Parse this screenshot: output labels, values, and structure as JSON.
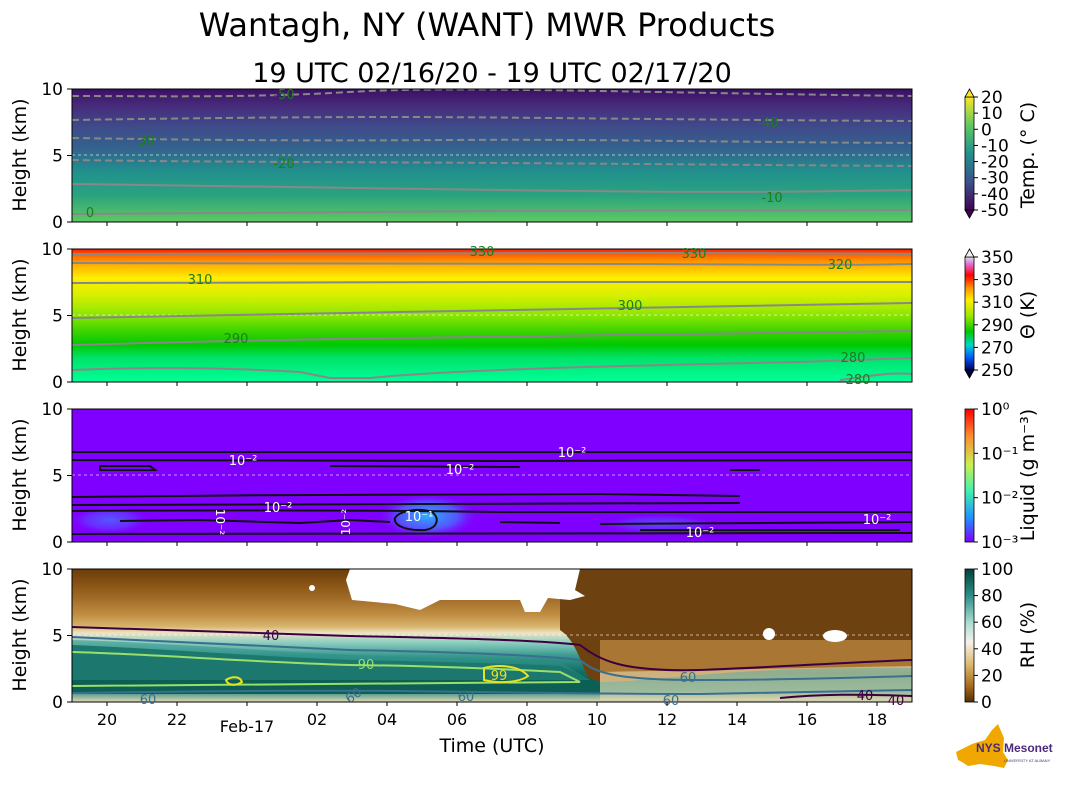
{
  "title": "Wantagh, NY (WANT) MWR Products",
  "subtitle": "19 UTC 02/16/20 - 19 UTC 02/17/20",
  "xlabel": "Time (UTC)",
  "logo_text": "NYS Mesonet",
  "logo_subtext": "UNIVERSITY AT ALBANY",
  "colors": {
    "contour_gray": "#808080",
    "contour_black": "#111111",
    "contour_label_green": "#1a7f1a"
  },
  "chart_data": [
    {
      "type": "heatmap",
      "panel": "temperature",
      "ylabel": "Height (km)",
      "cbar_label": "Temp. (° C)",
      "cbar_ticks": [
        "20",
        "10",
        "0",
        "-10",
        "-20",
        "-30",
        "-40",
        "-50"
      ],
      "ylim": [
        0,
        10
      ],
      "yticks": [
        "0",
        "5",
        "10"
      ],
      "xticks": [
        "20",
        "22",
        "Feb-17",
        "02",
        "04",
        "06",
        "08",
        "10",
        "12",
        "14",
        "16",
        "18"
      ],
      "colormap": "viridis",
      "contour_labels": [
        "-50",
        "-30",
        "-20",
        "-40",
        "-10",
        "0"
      ],
      "contours": [
        {
          "level": -50,
          "height_km": 9.4
        },
        {
          "level": -40,
          "height_km": 7.7
        },
        {
          "level": -30,
          "height_km": 6.1
        },
        {
          "level": -20,
          "height_km": 4.5
        },
        {
          "level": -10,
          "height_km": 2.5
        },
        {
          "level": 0,
          "height_km": 0.6
        }
      ]
    },
    {
      "type": "heatmap",
      "panel": "potential_temperature",
      "ylabel": "Height (km)",
      "cbar_label": "Θ (K)",
      "cbar_ticks": [
        "350",
        "330",
        "310",
        "290",
        "270",
        "250"
      ],
      "ylim": [
        0,
        10
      ],
      "yticks": [
        "0",
        "5",
        "10"
      ],
      "colormap": "nipy_spectral",
      "contour_labels": [
        "330",
        "330",
        "310",
        "320",
        "300",
        "290",
        "280",
        "280"
      ],
      "contours": [
        {
          "level": 330,
          "height_km": 9.6
        },
        {
          "level": 320,
          "height_km": 8.8
        },
        {
          "level": 310,
          "height_km": 7.5
        },
        {
          "level": 300,
          "height_km": 5.0
        },
        {
          "level": 290,
          "height_km": 3.0
        },
        {
          "level": 280,
          "height_km": 1.0
        }
      ]
    },
    {
      "type": "heatmap",
      "panel": "liquid",
      "ylabel": "Height (km)",
      "cbar_label": "Liquid (g m⁻³)",
      "cbar_ticks": [
        "10⁰",
        "10⁻¹",
        "10⁻²",
        "10⁻³"
      ],
      "ylim": [
        0,
        10
      ],
      "yticks": [
        "0",
        "5",
        "10"
      ],
      "colormap": "rainbow",
      "contour_labels": [
        "10⁻²",
        "10⁻²",
        "10⁻²",
        "10⁻²",
        "10⁻²",
        "10⁻¹",
        "10⁻²",
        "10⁻²",
        "10⁻²"
      ]
    },
    {
      "type": "heatmap",
      "panel": "relative_humidity",
      "ylabel": "Height (km)",
      "cbar_label": "RH (%)",
      "cbar_ticks": [
        "100",
        "80",
        "60",
        "40",
        "20",
        "0"
      ],
      "ylim": [
        0,
        10
      ],
      "yticks": [
        "0",
        "5",
        "10"
      ],
      "colormap": "BrBG",
      "contour_labels": [
        "40",
        "90",
        "99",
        "60",
        "60",
        "60",
        "60",
        "60",
        "40",
        "40"
      ]
    }
  ]
}
